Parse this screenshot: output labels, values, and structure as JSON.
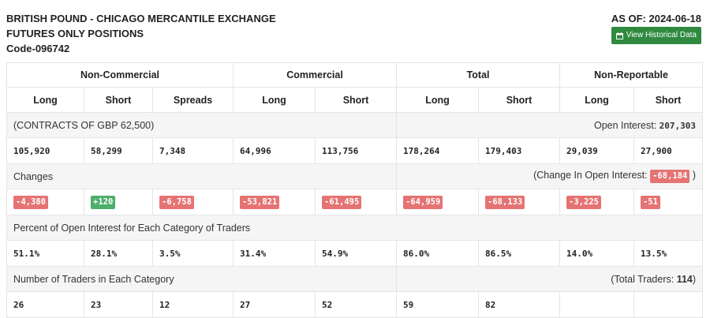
{
  "header": {
    "title_line1": "BRITISH POUND - CHICAGO MERCANTILE EXCHANGE",
    "title_line2": "FUTURES ONLY POSITIONS",
    "code": "Code-096742",
    "as_of": "AS OF: 2024-06-18",
    "history_button": "View Historical Data",
    "history_icon": "calendar-icon"
  },
  "groups": [
    "Non-Commercial",
    "Commercial",
    "Total",
    "Non-Reportable"
  ],
  "columns": [
    "Long",
    "Short",
    "Spreads",
    "Long",
    "Short",
    "Long",
    "Short",
    "Long",
    "Short"
  ],
  "contracts": {
    "label": "(CONTRACTS OF GBP 62,500)",
    "open_interest_label": "Open Interest:",
    "open_interest_value": "207,303",
    "values": [
      "105,920",
      "58,299",
      "7,348",
      "64,996",
      "113,756",
      "178,264",
      "179,403",
      "29,039",
      "27,900"
    ]
  },
  "changes": {
    "label": "Changes",
    "oi_label": "(Change In Open Interest:",
    "oi_value": "-68,184",
    "oi_close": ")",
    "values": [
      "-4,380",
      "+120",
      "-6,758",
      "-53,821",
      "-61,495",
      "-64,959",
      "-68,133",
      "-3,225",
      "-51"
    ],
    "negative_color": "#e57373",
    "positive_color": "#4caf6a"
  },
  "percent": {
    "label": "Percent of Open Interest for Each Category of Traders",
    "values": [
      "51.1%",
      "28.1%",
      "3.5%",
      "31.4%",
      "54.9%",
      "86.0%",
      "86.5%",
      "14.0%",
      "13.5%"
    ]
  },
  "traders": {
    "label": "Number of Traders in Each Category",
    "total_label": "(Total Traders:",
    "total_value": "114",
    "total_close": ")",
    "values": [
      "26",
      "23",
      "12",
      "27",
      "52",
      "59",
      "82",
      "",
      ""
    ]
  },
  "colors": {
    "button_green": "#2f8a3f",
    "section_bg": "#f5f5f5",
    "border": "#e4e4e4"
  }
}
